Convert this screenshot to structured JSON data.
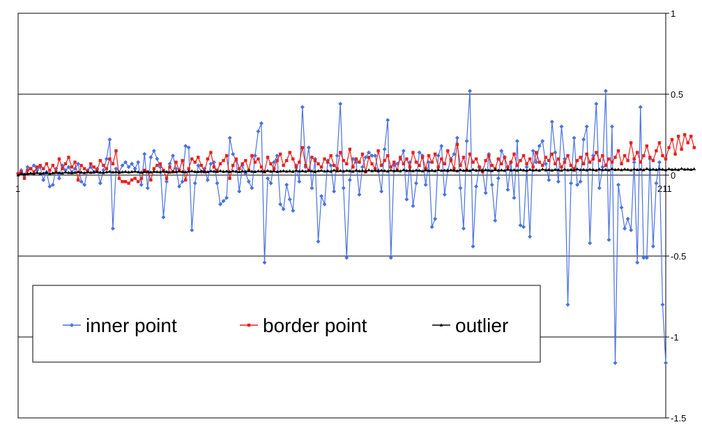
{
  "chart_data": {
    "type": "line",
    "ylim": [
      -1.5,
      1
    ],
    "ytick_labels": [
      "1",
      "0.5",
      "0",
      "-0.5",
      "-1",
      "-1.5"
    ],
    "yticks": [
      1,
      0.5,
      0,
      -0.5,
      -1,
      -1.5
    ],
    "xtick_labels": [
      "1",
      "211"
    ],
    "grid": "horizontal",
    "legend_position": "bottom-left inside plot",
    "series": [
      {
        "name": "inner point",
        "color": "#4a72e0",
        "marker": "diamond",
        "values": [
          0.01,
          0.03,
          0.0,
          0.05,
          0.04,
          0.06,
          0.03,
          0.05,
          -0.03,
          0.02,
          -0.07,
          -0.06,
          0.04,
          -0.02,
          0.06,
          0.03,
          0.05,
          0.02,
          0.04,
          0.07,
          -0.04,
          -0.06,
          0.03,
          0.05,
          0.02,
          0.04,
          -0.05,
          0.03,
          0.1,
          0.22,
          -0.33,
          0.04,
          0.02,
          0.06,
          0.08,
          0.05,
          0.07,
          0.04,
          0.08,
          -0.06,
          0.13,
          -0.08,
          0.11,
          0.15,
          0.1,
          0.05,
          -0.26,
          -0.04,
          0.07,
          0.12,
          0.04,
          -0.07,
          -0.04,
          0.18,
          0.17,
          -0.34,
          -0.05,
          0.06,
          0.02,
          0.04,
          -0.03,
          0.07,
          0.08,
          -0.05,
          -0.18,
          -0.16,
          -0.14,
          0.23,
          0.13,
          0.09,
          -0.1,
          0.06,
          0.01,
          -0.04,
          -0.08,
          0.12,
          0.27,
          0.32,
          -0.54,
          -0.02,
          -0.05,
          0.08,
          0.12,
          -0.18,
          -0.21,
          -0.06,
          -0.15,
          -0.22,
          0.06,
          -0.04,
          0.42,
          0.05,
          0.17,
          -0.08,
          0.1,
          -0.41,
          -0.13,
          -0.18,
          0.09,
          0.06,
          -0.1,
          0.12,
          0.44,
          -0.08,
          -0.51,
          -0.03,
          0.1,
          0.08,
          -0.12,
          0.05,
          0.11,
          0.14,
          0.12,
          0.12,
          0.03,
          -0.1,
          0.16,
          0.34,
          -0.51,
          0.06,
          0.07,
          0.1,
          0.15,
          -0.15,
          0.08,
          -0.19,
          -0.05,
          0.14,
          0.12,
          -0.06,
          0.08,
          -0.32,
          -0.27,
          0.12,
          0.18,
          -0.12,
          0.03,
          0.1,
          0.13,
          0.23,
          -0.08,
          -0.33,
          0.21,
          0.52,
          -0.44,
          -0.07,
          0.05,
          0.03,
          -0.11,
          0.13,
          -0.06,
          -0.28,
          -0.02,
          0.15,
          0.11,
          -0.09,
          0.08,
          -0.14,
          0.21,
          -0.31,
          -0.32,
          0.05,
          -0.38,
          0.15,
          0.08,
          0.18,
          0.21,
          0.07,
          -0.03,
          0.33,
          0.14,
          -0.04,
          0.3,
          0.1,
          -0.8,
          -0.05,
          0.23,
          -0.06,
          -0.04,
          0.22,
          0.3,
          -0.42,
          0.12,
          0.44,
          -0.08,
          0.05,
          0.52,
          -0.4,
          0.3,
          -1.16,
          -0.06,
          -0.2,
          -0.33,
          -0.27,
          -0.34,
          0.08,
          -0.54,
          0.42,
          -0.51,
          -0.51,
          0.1,
          -0.44,
          -0.05,
          0.08,
          -0.8,
          -1.16
        ]
      },
      {
        "name": "border point",
        "color": "#e8201c",
        "marker": "square",
        "values": [
          0.01,
          0.02,
          -0.02,
          0.03,
          0.04,
          0.02,
          0.05,
          0.06,
          0.04,
          0.07,
          0.03,
          0.06,
          0.02,
          0.1,
          0.04,
          0.07,
          0.11,
          0.05,
          0.08,
          -0.03,
          0.06,
          0.04,
          0.02,
          0.07,
          0.05,
          0.03,
          0.09,
          0.06,
          0.04,
          0.1,
          0.07,
          0.15,
          -0.02,
          -0.04,
          -0.04,
          -0.05,
          -0.03,
          -0.02,
          -0.04,
          -0.02,
          0.03,
          0.02,
          -0.03,
          0.04,
          0.06,
          0.07,
          0.03,
          -0.02,
          0.05,
          0.02,
          0.08,
          0.03,
          0.09,
          -0.03,
          0.04,
          0.1,
          0.08,
          0.11,
          0.06,
          0.02,
          0.1,
          0.14,
          0.05,
          0.03,
          0.07,
          0.09,
          0.12,
          -0.02,
          0.06,
          0.1,
          0.04,
          0.07,
          0.09,
          0.03,
          0.12,
          0.08,
          0.1,
          0.05,
          0.02,
          0.11,
          0.07,
          0.04,
          0.09,
          0.13,
          0.06,
          0.09,
          0.14,
          0.1,
          0.05,
          0.08,
          0.17,
          0.06,
          0.03,
          0.11,
          0.09,
          0.07,
          0.05,
          0.1,
          0.08,
          0.12,
          0.06,
          0.04,
          0.14,
          0.09,
          0.07,
          0.16,
          0.05,
          0.1,
          0.08,
          0.13,
          0.02,
          0.11,
          0.07,
          0.04,
          0.15,
          0.06,
          0.09,
          0.12,
          0.05,
          0.08,
          0.03,
          0.11,
          0.07,
          0.1,
          0.05,
          0.14,
          0.08,
          0.06,
          0.11,
          0.04,
          0.12,
          0.08,
          0.13,
          0.05,
          0.1,
          0.07,
          0.15,
          0.09,
          0.04,
          0.19,
          0.06,
          0.11,
          0.03,
          0.13,
          0.08,
          0.1,
          0.05,
          0.02,
          0.09,
          0.12,
          0.06,
          0.04,
          0.1,
          0.07,
          0.11,
          0.05,
          0.08,
          0.13,
          0.06,
          0.09,
          0.12,
          0.07,
          0.1,
          0.05,
          0.14,
          0.08,
          0.06,
          0.11,
          0.09,
          0.13,
          0.07,
          0.1,
          0.05,
          0.08,
          0.12,
          0.06,
          0.04,
          0.09,
          0.11,
          0.07,
          0.13,
          0.08,
          0.1,
          0.14,
          0.09,
          0.12,
          0.06,
          0.1,
          0.08,
          0.11,
          0.15,
          0.07,
          0.12,
          0.09,
          0.2,
          0.1,
          0.14,
          0.08,
          0.12,
          0.18,
          0.11,
          0.09,
          0.15,
          0.2,
          0.12,
          0.1,
          0.17,
          0.22,
          0.13,
          0.24,
          0.16,
          0.25,
          0.2,
          0.24,
          0.17
        ]
      },
      {
        "name": "outlier",
        "color": "#000000",
        "marker": "triangle",
        "values": [
          0.0,
          0.01,
          0.005,
          0.01,
          0.012,
          0.008,
          0.015,
          0.01,
          0.012,
          0.015,
          0.01,
          0.013,
          0.016,
          0.014,
          0.012,
          0.018,
          0.015,
          0.013,
          0.016,
          0.02,
          0.017,
          0.014,
          0.019,
          0.016,
          0.018,
          0.02,
          0.017,
          0.015,
          0.019,
          0.022,
          0.018,
          0.02,
          0.016,
          0.019,
          0.021,
          0.018,
          0.02,
          0.023,
          0.019,
          0.017,
          0.021,
          0.02,
          0.018,
          0.022,
          0.02,
          0.019,
          0.023,
          0.021,
          0.018,
          0.022,
          0.02,
          0.024,
          0.021,
          0.019,
          0.023,
          0.025,
          0.021,
          0.02,
          0.024,
          0.022,
          0.02,
          0.025,
          0.023,
          0.021,
          0.026,
          0.022,
          0.024,
          0.021,
          0.025,
          0.023,
          0.02,
          0.024,
          0.022,
          0.026,
          0.023,
          0.021,
          0.025,
          0.024,
          0.022,
          0.027,
          0.023,
          0.025,
          0.021,
          0.024,
          0.026,
          0.023,
          0.025,
          0.022,
          0.028,
          0.024,
          0.026,
          0.023,
          0.027,
          0.025,
          0.022,
          0.026,
          0.028,
          0.024,
          0.026,
          0.023,
          0.03,
          0.025,
          0.027,
          0.024,
          0.028,
          0.026,
          0.023,
          0.029,
          0.025,
          0.027,
          0.024,
          0.031,
          0.026,
          0.028,
          0.025,
          0.029,
          0.027,
          0.024,
          0.03,
          0.026,
          0.028,
          0.025,
          0.032,
          0.027,
          0.029,
          0.026,
          0.03,
          0.028,
          0.025,
          0.031,
          0.027,
          0.029,
          0.026,
          0.033,
          0.028,
          0.03,
          0.027,
          0.031,
          0.029,
          0.026,
          0.032,
          0.028,
          0.03,
          0.027,
          0.034,
          0.029,
          0.031,
          0.028,
          0.032,
          0.03,
          0.027,
          0.033,
          0.029,
          0.031,
          0.028,
          0.035,
          0.03,
          0.032,
          0.029,
          0.033,
          0.031,
          0.028,
          0.034,
          0.03,
          0.032,
          0.029,
          0.036,
          0.031,
          0.033,
          0.03,
          0.034,
          0.032,
          0.029,
          0.035,
          0.031,
          0.033,
          0.03,
          0.037,
          0.032,
          0.034,
          0.031,
          0.035,
          0.033,
          0.03,
          0.036,
          0.032,
          0.034,
          0.031,
          0.038,
          0.033,
          0.035,
          0.032,
          0.036,
          0.034,
          0.031,
          0.037,
          0.033,
          0.035,
          0.032,
          0.039,
          0.034,
          0.036,
          0.033,
          0.037,
          0.035,
          0.032,
          0.038,
          0.034,
          0.036,
          0.033,
          0.04,
          0.035,
          0.037,
          0.034,
          0.038
        ]
      }
    ]
  }
}
